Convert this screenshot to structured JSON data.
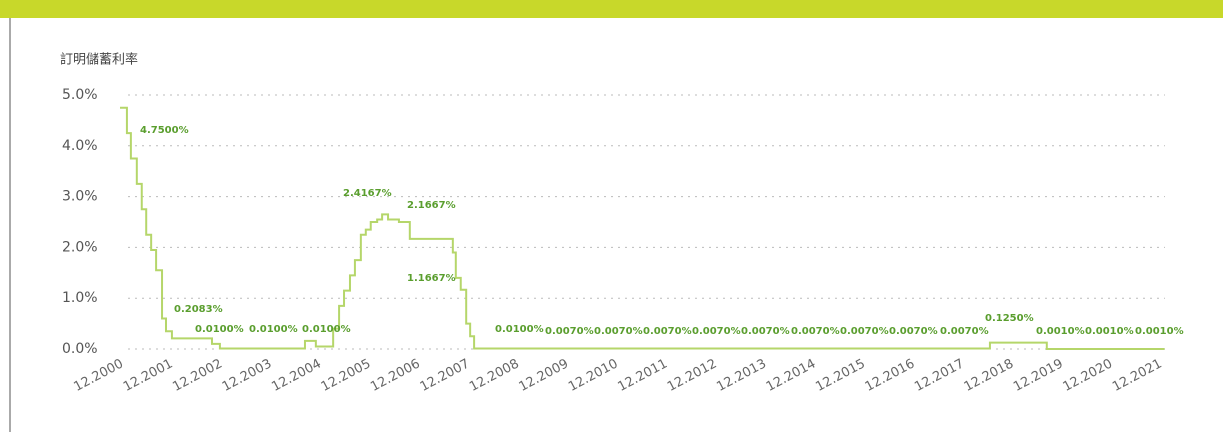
{
  "chart_data": {
    "type": "step-line",
    "title": "訂明儲蓄利率",
    "xlim": [
      2000.87,
      2022.0
    ],
    "xticks": [
      {
        "value": 2000.92,
        "label": "12.2000"
      },
      {
        "value": 2001.92,
        "label": "12.2001"
      },
      {
        "value": 2002.92,
        "label": "12.2002"
      },
      {
        "value": 2003.92,
        "label": "12.2003"
      },
      {
        "value": 2004.92,
        "label": "12.2004"
      },
      {
        "value": 2005.92,
        "label": "12.2005"
      },
      {
        "value": 2006.92,
        "label": "12.2006"
      },
      {
        "value": 2007.92,
        "label": "12.2007"
      },
      {
        "value": 2008.92,
        "label": "12.2008"
      },
      {
        "value": 2009.92,
        "label": "12.2009"
      },
      {
        "value": 2010.92,
        "label": "12.2010"
      },
      {
        "value": 2011.92,
        "label": "12.2011"
      },
      {
        "value": 2012.92,
        "label": "12.2012"
      },
      {
        "value": 2013.92,
        "label": "12.2013"
      },
      {
        "value": 2014.92,
        "label": "12.2014"
      },
      {
        "value": 2015.92,
        "label": "12.2015"
      },
      {
        "value": 2016.92,
        "label": "12.2016"
      },
      {
        "value": 2017.92,
        "label": "12.2017"
      },
      {
        "value": 2018.92,
        "label": "12.2018"
      },
      {
        "value": 2019.92,
        "label": "12.2019"
      },
      {
        "value": 2020.92,
        "label": "12.2020"
      },
      {
        "value": 2021.92,
        "label": "12.2021"
      }
    ],
    "ylim": [
      0,
      5
    ],
    "yticks": [
      {
        "value": 0,
        "label": "0.0%"
      },
      {
        "value": 1,
        "label": "1.0%"
      },
      {
        "value": 2,
        "label": "2.0%"
      },
      {
        "value": 3,
        "label": "3.0%"
      },
      {
        "value": 4,
        "label": "4.0%"
      },
      {
        "value": 5,
        "label": "5.0%"
      }
    ],
    "grid": true,
    "series": [
      {
        "color": "#b5d66a",
        "x": [
          2000.87,
          2001.01,
          2001.09,
          2001.21,
          2001.31,
          2001.4,
          2001.5,
          2001.6,
          2001.72,
          2001.8,
          2001.92,
          2002.73,
          2002.89,
          2004.61,
          2004.83,
          2005.18,
          2005.3,
          2005.4,
          2005.52,
          2005.62,
          2005.74,
          2005.84,
          2005.94,
          2006.07,
          2006.17,
          2006.29,
          2006.51,
          2006.73,
          2007.6,
          2007.66,
          2007.76,
          2007.87,
          2007.95,
          2008.03,
          2018.46,
          2019.61,
          2021.99
        ],
        "values": [
          4.75,
          4.25,
          3.75,
          3.25,
          2.75,
          2.25,
          1.95,
          1.55,
          0.6,
          0.35,
          0.2083,
          0.1,
          0.01,
          0.16,
          0.05,
          0.4,
          0.85,
          1.15,
          1.45,
          1.75,
          2.25,
          2.35,
          2.5,
          2.55,
          2.65,
          2.55,
          2.5,
          2.1667,
          1.9,
          1.4,
          1.1667,
          0.5,
          0.25,
          0.01,
          0.125,
          0.001,
          0.001
        ]
      }
    ],
    "annotations": [
      "4.7500%",
      "0.2083%",
      "0.0100%",
      "0.0100%",
      "0.0100%",
      "2.4167%",
      "2.1667%",
      "1.1667%",
      "0.0100%",
      "0.0070%",
      "0.0070%",
      "0.0070%",
      "0.0070%",
      "0.0070%",
      "0.0070%",
      "0.0070%",
      "0.0070%",
      "0.0070%",
      "0.1250%",
      "0.0010%",
      "0.0010%",
      "0.0010%"
    ]
  }
}
